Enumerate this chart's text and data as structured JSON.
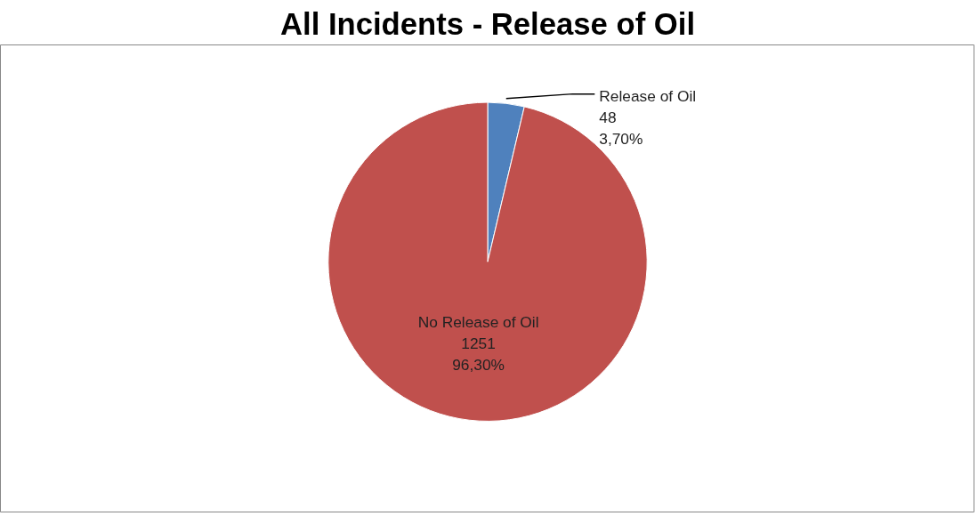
{
  "chart_data": {
    "type": "pie",
    "title": "All Incidents - Release of Oil",
    "categories": [
      "Release of Oil",
      "No Release of Oil"
    ],
    "values": [
      48,
      1251
    ],
    "colors": [
      "#4f81bd",
      "#c0504d"
    ],
    "value_labels": [
      "48\n3,70%",
      "1251\n96,30%"
    ]
  }
}
